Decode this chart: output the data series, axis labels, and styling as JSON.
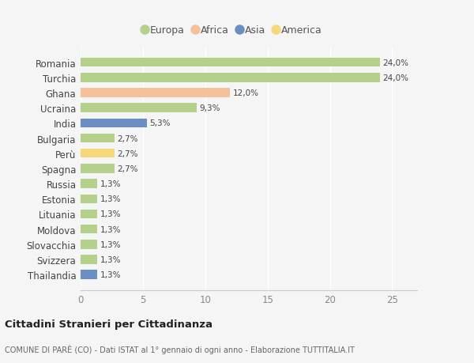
{
  "countries": [
    "Romania",
    "Turchia",
    "Ghana",
    "Ucraina",
    "India",
    "Bulgaria",
    "Perù",
    "Spagna",
    "Russia",
    "Estonia",
    "Lituania",
    "Moldova",
    "Slovacchia",
    "Svizzera",
    "Thailandia"
  ],
  "values": [
    24.0,
    24.0,
    12.0,
    9.3,
    5.3,
    2.7,
    2.7,
    2.7,
    1.3,
    1.3,
    1.3,
    1.3,
    1.3,
    1.3,
    1.3
  ],
  "labels": [
    "24,0%",
    "24,0%",
    "12,0%",
    "9,3%",
    "5,3%",
    "2,7%",
    "2,7%",
    "2,7%",
    "1,3%",
    "1,3%",
    "1,3%",
    "1,3%",
    "1,3%",
    "1,3%",
    "1,3%"
  ],
  "colors": [
    "#b5d08a",
    "#b5d08a",
    "#f5c09a",
    "#b5d08a",
    "#6b8ec4",
    "#b5d08a",
    "#f5d87a",
    "#b5d08a",
    "#b5d08a",
    "#b5d08a",
    "#b5d08a",
    "#b5d08a",
    "#b5d08a",
    "#b5d08a",
    "#6b8ec4"
  ],
  "legend_labels": [
    "Europa",
    "Africa",
    "Asia",
    "America"
  ],
  "legend_colors": [
    "#b5d08a",
    "#f5c09a",
    "#6b8ec4",
    "#f5d87a"
  ],
  "title": "Cittadini Stranieri per Cittadinanza",
  "subtitle": "COMUNE DI PARÈ (CO) - Dati ISTAT al 1° gennaio di ogni anno - Elaborazione TUTTITALIA.IT",
  "xlim": [
    0,
    27
  ],
  "xticks": [
    0,
    5,
    10,
    15,
    20,
    25
  ],
  "background_color": "#f5f5f5",
  "grid_color": "#ffffff",
  "bar_height": 0.6
}
